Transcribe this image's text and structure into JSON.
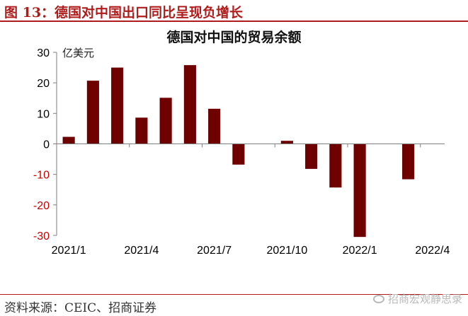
{
  "figure": {
    "title": "图 13：德国对中国出口同比呈现负增长",
    "source": "资料来源：CEIC、招商证券",
    "watermark": "招商宏观静思录"
  },
  "chart_data": {
    "type": "bar",
    "title": "德国对中国的贸易余额",
    "unit_label": "亿美元",
    "xlabel": "",
    "ylabel": "",
    "ylim": [
      -30,
      30
    ],
    "yticks": [
      30,
      20,
      10,
      0,
      -10,
      -20,
      -30
    ],
    "categories": [
      "2021/1",
      "2021/2",
      "2021/3",
      "2021/4",
      "2021/5",
      "2021/6",
      "2021/7",
      "2021/8",
      "2021/9",
      "2021/10",
      "2021/11",
      "2021/12",
      "2022/1",
      "2022/2",
      "2022/3",
      "2022/4"
    ],
    "x_tick_labels": [
      "2021/1",
      "2021/4",
      "2021/7",
      "2021/10",
      "2022/1",
      "2022/4"
    ],
    "series": [
      {
        "values": [
          2.3,
          20.7,
          25.0,
          8.6,
          15.1,
          25.8,
          11.5,
          -6.8,
          null,
          1.0,
          -8.2,
          -14.3,
          -30.5,
          null,
          -11.6,
          null
        ],
        "color": "#6e0000"
      }
    ],
    "negative_tick_color": "#cc0000",
    "grid": false,
    "legend": "none"
  }
}
